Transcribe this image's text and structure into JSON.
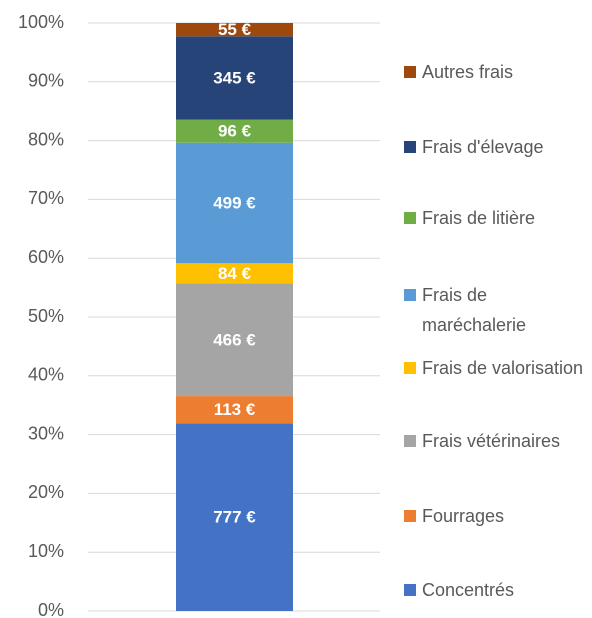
{
  "chart_data": {
    "type": "bar",
    "stacked": "percent",
    "categories": [
      null
    ],
    "series": [
      {
        "name": "Concentrés",
        "color": "#4472c4",
        "values": [
          777
        ],
        "value_labels": [
          "777 €"
        ]
      },
      {
        "name": "Fourrages",
        "color": "#ed7d31",
        "values": [
          113
        ],
        "value_labels": [
          "113 €"
        ]
      },
      {
        "name": "Frais vétérinaires",
        "color": "#a5a5a5",
        "values": [
          466
        ],
        "value_labels": [
          "466 €"
        ]
      },
      {
        "name": "Frais de valorisation",
        "color": "#ffc000",
        "values": [
          84
        ],
        "value_labels": [
          "84 €"
        ]
      },
      {
        "name": "Frais de maréchalerie",
        "color": "#5b9bd5",
        "values": [
          499
        ],
        "value_labels": [
          "499 €"
        ]
      },
      {
        "name": "Frais de litière",
        "color": "#70ad47",
        "values": [
          96
        ],
        "value_labels": [
          "96 €"
        ]
      },
      {
        "name": "Frais d'élevage",
        "color": "#264478",
        "values": [
          345
        ],
        "value_labels": [
          "345 €"
        ]
      },
      {
        "name": "Autres frais",
        "color": "#9e480e",
        "values": [
          55
        ],
        "value_labels": [
          "55 €"
        ]
      }
    ],
    "ylim": [
      0,
      100
    ],
    "yticks": [
      {
        "value": 0,
        "label": "0%"
      },
      {
        "value": 10,
        "label": "10%"
      },
      {
        "value": 20,
        "label": "20%"
      },
      {
        "value": 30,
        "label": "30%"
      },
      {
        "value": 40,
        "label": "40%"
      },
      {
        "value": 50,
        "label": "50%"
      },
      {
        "value": 60,
        "label": "60%"
      },
      {
        "value": 70,
        "label": "70%"
      },
      {
        "value": 80,
        "label": "80%"
      },
      {
        "value": 90,
        "label": "90%"
      },
      {
        "value": 100,
        "label": "100%"
      }
    ],
    "grid": true,
    "legend": "right"
  }
}
